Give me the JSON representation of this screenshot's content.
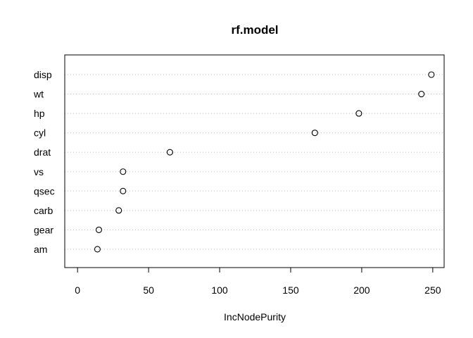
{
  "chart_data": {
    "type": "scatter",
    "subtype": "dotchart",
    "title": "rf.model",
    "xlabel": "IncNodePurity",
    "ylabel": "",
    "xlim": [
      -9,
      258
    ],
    "xticks": [
      0,
      50,
      100,
      150,
      200,
      250
    ],
    "grid": "dotted horizontal guide lines",
    "categories": [
      "disp",
      "wt",
      "hp",
      "cyl",
      "drat",
      "vs",
      "qsec",
      "carb",
      "gear",
      "am"
    ],
    "values": [
      249,
      242,
      198,
      167,
      65,
      32,
      32,
      29,
      15,
      14
    ],
    "colors": {
      "points": "#000000",
      "guides": "#bebebe",
      "box": "#000000"
    }
  }
}
